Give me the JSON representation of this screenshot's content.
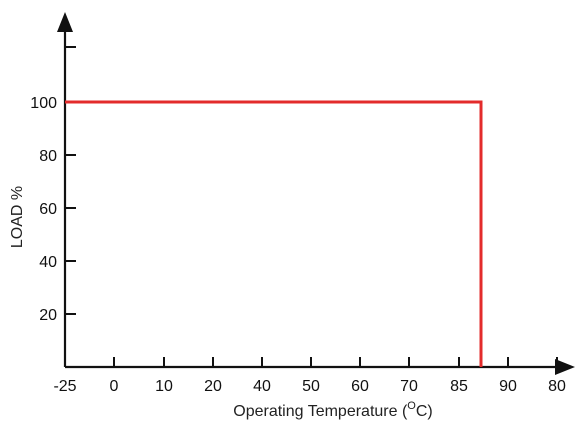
{
  "chart_data": {
    "type": "line",
    "title": "",
    "xlabel": "Operating Temperature (",
    "xlabel_degree": "O",
    "xlabel_unit": "C)",
    "ylabel": "LOAD %",
    "x_ticks": [
      "-25",
      "0",
      "10",
      "20",
      "40",
      "50",
      "60",
      "70",
      "85",
      "90",
      "80"
    ],
    "y_ticks": [
      20,
      40,
      60,
      80,
      100
    ],
    "y_range": [
      0,
      100
    ],
    "grid": false,
    "series": [
      {
        "color": "#e32b2b",
        "points": [
          {
            "x": "-25",
            "y": 100
          },
          {
            "x": "85",
            "y": 100
          },
          {
            "x": "85",
            "y": 0
          }
        ]
      }
    ]
  }
}
